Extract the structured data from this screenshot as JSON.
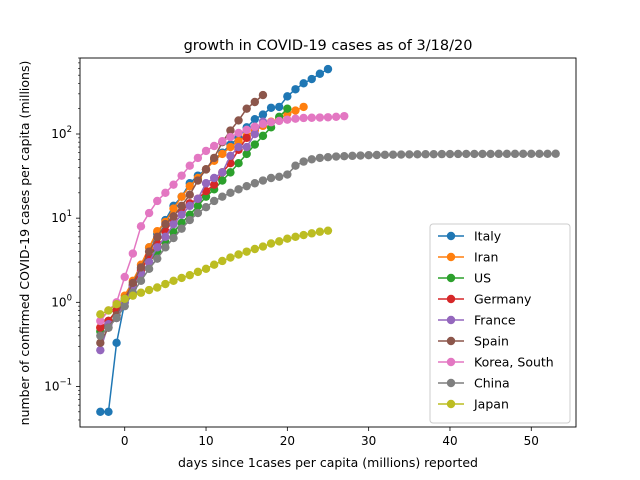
{
  "chart_data": {
    "type": "line",
    "title": "growth in COVID-19 cases as of 3/18/20",
    "xlabel": "days since 1cases per capita (millions) reported",
    "ylabel": "number of confirmed COVID-19 cases per capita (millions)",
    "xscale": "linear",
    "yscale": "log",
    "xlim": [
      -5.5,
      55.5
    ],
    "ylim": [
      0.033,
      800
    ],
    "xticks": [
      0,
      10,
      20,
      30,
      40,
      50
    ],
    "xtick_labels": [
      "0",
      "10",
      "20",
      "30",
      "40",
      "50"
    ],
    "yticks": [
      0.1,
      1,
      10,
      100
    ],
    "ytick_base": "10",
    "ytick_exponents": [
      "−1",
      "0",
      "1",
      "2"
    ],
    "legend_position": "lower-right",
    "grid": false,
    "series": [
      {
        "name": "Italy",
        "color": "#1f77b4",
        "x": [
          -3,
          -2,
          -1,
          0,
          1,
          2,
          3,
          4,
          5,
          6,
          7,
          8,
          9,
          10,
          11,
          12,
          13,
          14,
          15,
          16,
          17,
          18,
          19,
          20,
          21,
          22,
          23,
          24,
          25
        ],
        "y": [
          0.05,
          0.05,
          0.33,
          1.0,
          1.6,
          2.5,
          4.5,
          6.5,
          9.5,
          14,
          18,
          26,
          32,
          38,
          50,
          60,
          75,
          90,
          120,
          150,
          170,
          205,
          210,
          280,
          340,
          400,
          450,
          520,
          590
        ]
      },
      {
        "name": "Iran",
        "color": "#ff7f0e",
        "x": [
          -3,
          -2,
          -1,
          0,
          1,
          2,
          3,
          4,
          5,
          6,
          7,
          8,
          9,
          10,
          11,
          12,
          13,
          14,
          15,
          16,
          17,
          18,
          19,
          20,
          21,
          22
        ],
        "y": [
          0.5,
          0.6,
          0.8,
          1.2,
          1.8,
          2.8,
          4.5,
          7,
          9,
          13,
          18,
          24,
          30,
          38,
          48,
          58,
          70,
          82,
          95,
          110,
          125,
          140,
          150,
          175,
          190,
          210
        ]
      },
      {
        "name": "US",
        "color": "#2ca02c",
        "x": [
          -3,
          -2,
          -1,
          0,
          1,
          2,
          3,
          4,
          5,
          6,
          7,
          8,
          9,
          10,
          11,
          12,
          13,
          14,
          15,
          16,
          17,
          18,
          19,
          20
        ],
        "y": [
          0.45,
          0.6,
          0.8,
          1.1,
          1.5,
          2.2,
          3.0,
          4.0,
          5.2,
          6.8,
          8.8,
          11,
          14,
          18,
          22,
          28,
          35,
          45,
          58,
          75,
          95,
          120,
          160,
          200
        ]
      },
      {
        "name": "Germany",
        "color": "#d62728",
        "x": [
          -3,
          -2,
          -1,
          0,
          1,
          2,
          3,
          4,
          5,
          6,
          7,
          8,
          9,
          10,
          11,
          12,
          13,
          14,
          15
        ],
        "y": [
          0.5,
          0.6,
          0.8,
          1.1,
          1.6,
          2.4,
          3.5,
          5,
          7,
          9.5,
          12,
          15,
          17,
          21,
          25,
          35,
          45,
          65,
          90
        ]
      },
      {
        "name": "France",
        "color": "#9467bd",
        "x": [
          -3,
          -2,
          -1,
          0,
          1,
          2,
          3,
          4,
          5,
          6,
          7,
          8,
          9,
          10,
          11,
          12,
          13,
          14,
          15,
          16,
          17
        ],
        "y": [
          0.27,
          0.55,
          0.65,
          1.0,
          1.5,
          2.2,
          3.0,
          4.5,
          6,
          8.5,
          11,
          14,
          17,
          26,
          30,
          35,
          55,
          70,
          70,
          100,
          140
        ]
      },
      {
        "name": "Spain",
        "color": "#8c564b",
        "x": [
          -3,
          -2,
          -1,
          0,
          1,
          2,
          3,
          4,
          5,
          6,
          7,
          8,
          9,
          10,
          11,
          12,
          13,
          14,
          15,
          16,
          17
        ],
        "y": [
          0.33,
          0.5,
          0.7,
          1.1,
          1.7,
          2.6,
          4,
          6,
          8.5,
          10.5,
          14,
          19,
          28,
          38,
          52,
          80,
          110,
          145,
          200,
          240,
          290
        ]
      },
      {
        "name": "Korea, South",
        "color": "#e377c2",
        "x": [
          -3,
          -2,
          -1,
          0,
          1,
          2,
          3,
          4,
          5,
          6,
          7,
          8,
          9,
          10,
          11,
          12,
          13,
          14,
          15,
          16,
          17,
          18,
          19,
          20,
          21,
          22,
          23,
          24,
          25,
          26,
          27
        ],
        "y": [
          0.6,
          0.8,
          1.0,
          2.0,
          3.8,
          8,
          11.5,
          16,
          20,
          25,
          32,
          42,
          52,
          63,
          72,
          82,
          92,
          103,
          112,
          122,
          132,
          138,
          143,
          148,
          152,
          155,
          156,
          157,
          158,
          160,
          163
        ]
      },
      {
        "name": "China",
        "color": "#7f7f7f",
        "x": [
          -3,
          -2,
          -1,
          0,
          1,
          2,
          3,
          4,
          5,
          6,
          7,
          8,
          9,
          10,
          11,
          12,
          13,
          14,
          15,
          16,
          17,
          18,
          19,
          20,
          21,
          22,
          23,
          24,
          25,
          26,
          27,
          28,
          29,
          30,
          31,
          32,
          33,
          34,
          35,
          36,
          37,
          38,
          39,
          40,
          41,
          42,
          43,
          44,
          45,
          46,
          47,
          48,
          49,
          50,
          51,
          52,
          53
        ],
        "y": [
          0.4,
          0.5,
          0.65,
          0.9,
          1.3,
          1.8,
          2.5,
          3.3,
          4.5,
          5.8,
          7.5,
          9.5,
          11.5,
          13.5,
          16,
          18,
          20,
          22,
          24,
          26,
          28,
          30,
          31,
          33,
          42,
          47,
          50,
          52,
          53,
          54,
          54.5,
          55,
          55.5,
          56,
          56.3,
          56.6,
          56.8,
          57,
          57.2,
          57.4,
          57.5,
          57.6,
          57.7,
          57.8,
          57.9,
          58,
          58,
          58,
          58,
          58.1,
          58.1,
          58.1,
          58.2,
          58.2,
          58.2,
          58.2,
          58.3
        ]
      },
      {
        "name": "Japan",
        "color": "#bcbd22",
        "x": [
          -3,
          -2,
          -1,
          0,
          1,
          2,
          3,
          4,
          5,
          6,
          7,
          8,
          9,
          10,
          11,
          12,
          13,
          14,
          15,
          16,
          17,
          18,
          19,
          20,
          21,
          22,
          23,
          24,
          25
        ],
        "y": [
          0.72,
          0.8,
          0.95,
          1.1,
          1.2,
          1.3,
          1.4,
          1.5,
          1.65,
          1.8,
          1.95,
          2.1,
          2.3,
          2.5,
          2.8,
          3.1,
          3.4,
          3.7,
          4.0,
          4.3,
          4.6,
          5.0,
          5.3,
          5.7,
          6.0,
          6.3,
          6.6,
          6.9,
          7.1
        ]
      }
    ]
  }
}
